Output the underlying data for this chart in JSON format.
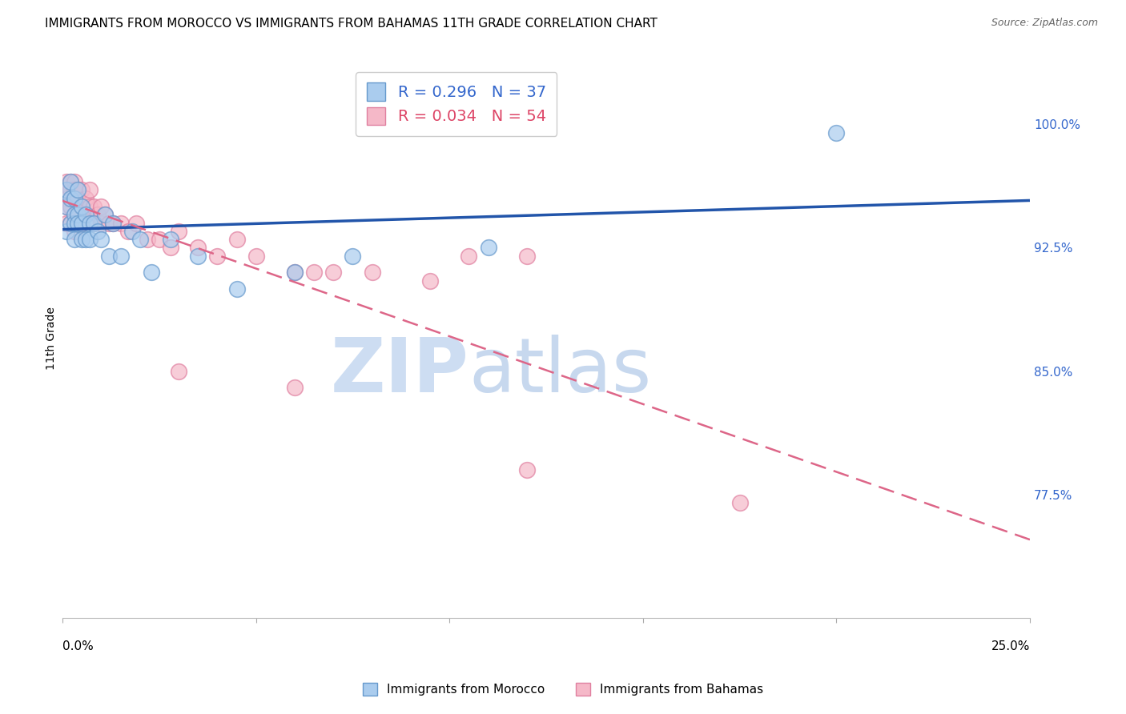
{
  "title": "IMMIGRANTS FROM MOROCCO VS IMMIGRANTS FROM BAHAMAS 11TH GRADE CORRELATION CHART",
  "source": "Source: ZipAtlas.com",
  "ylabel": "11th Grade",
  "ytick_labels": [
    "77.5%",
    "85.0%",
    "92.5%",
    "100.0%"
  ],
  "ytick_values": [
    0.775,
    0.85,
    0.925,
    1.0
  ],
  "xlim": [
    0.0,
    0.25
  ],
  "ylim": [
    0.7,
    1.04
  ],
  "watermark_zip": "ZIP",
  "watermark_atlas": "atlas",
  "morocco_x": [
    0.001,
    0.001,
    0.001,
    0.002,
    0.002,
    0.002,
    0.003,
    0.003,
    0.003,
    0.003,
    0.004,
    0.004,
    0.004,
    0.005,
    0.005,
    0.005,
    0.006,
    0.006,
    0.007,
    0.007,
    0.008,
    0.009,
    0.01,
    0.011,
    0.012,
    0.013,
    0.015,
    0.018,
    0.02,
    0.023,
    0.028,
    0.035,
    0.045,
    0.06,
    0.075,
    0.11,
    0.2
  ],
  "morocco_y": [
    0.96,
    0.95,
    0.935,
    0.965,
    0.955,
    0.94,
    0.955,
    0.945,
    0.94,
    0.93,
    0.96,
    0.945,
    0.94,
    0.95,
    0.94,
    0.93,
    0.945,
    0.93,
    0.94,
    0.93,
    0.94,
    0.935,
    0.93,
    0.945,
    0.92,
    0.94,
    0.92,
    0.935,
    0.93,
    0.91,
    0.93,
    0.92,
    0.9,
    0.91,
    0.92,
    0.925,
    0.995
  ],
  "bahamas_x": [
    0.001,
    0.001,
    0.001,
    0.001,
    0.001,
    0.002,
    0.002,
    0.002,
    0.002,
    0.003,
    0.003,
    0.003,
    0.003,
    0.003,
    0.004,
    0.004,
    0.004,
    0.005,
    0.005,
    0.005,
    0.006,
    0.006,
    0.007,
    0.007,
    0.008,
    0.008,
    0.009,
    0.01,
    0.01,
    0.011,
    0.012,
    0.013,
    0.015,
    0.017,
    0.019,
    0.022,
    0.025,
    0.028,
    0.03,
    0.035,
    0.04,
    0.045,
    0.05,
    0.06,
    0.065,
    0.07,
    0.08,
    0.095,
    0.105,
    0.12,
    0.03,
    0.06,
    0.12,
    0.175
  ],
  "bahamas_y": [
    0.965,
    0.96,
    0.955,
    0.95,
    0.94,
    0.965,
    0.96,
    0.95,
    0.94,
    0.965,
    0.96,
    0.955,
    0.945,
    0.935,
    0.96,
    0.955,
    0.945,
    0.96,
    0.95,
    0.94,
    0.955,
    0.945,
    0.96,
    0.95,
    0.95,
    0.94,
    0.945,
    0.95,
    0.94,
    0.945,
    0.94,
    0.94,
    0.94,
    0.935,
    0.94,
    0.93,
    0.93,
    0.925,
    0.935,
    0.925,
    0.92,
    0.93,
    0.92,
    0.91,
    0.91,
    0.91,
    0.91,
    0.905,
    0.92,
    0.92,
    0.85,
    0.84,
    0.79,
    0.77
  ],
  "morocco_color": "#aaccee",
  "bahamas_color": "#f5b8c8",
  "morocco_edge_color": "#6699cc",
  "bahamas_edge_color": "#e080a0",
  "morocco_line_color": "#2255aa",
  "bahamas_line_color": "#dd6688",
  "background_color": "#ffffff",
  "grid_color": "#dddddd",
  "title_fontsize": 11,
  "axis_label_fontsize": 10,
  "tick_fontsize": 11,
  "legend_fontsize": 14
}
